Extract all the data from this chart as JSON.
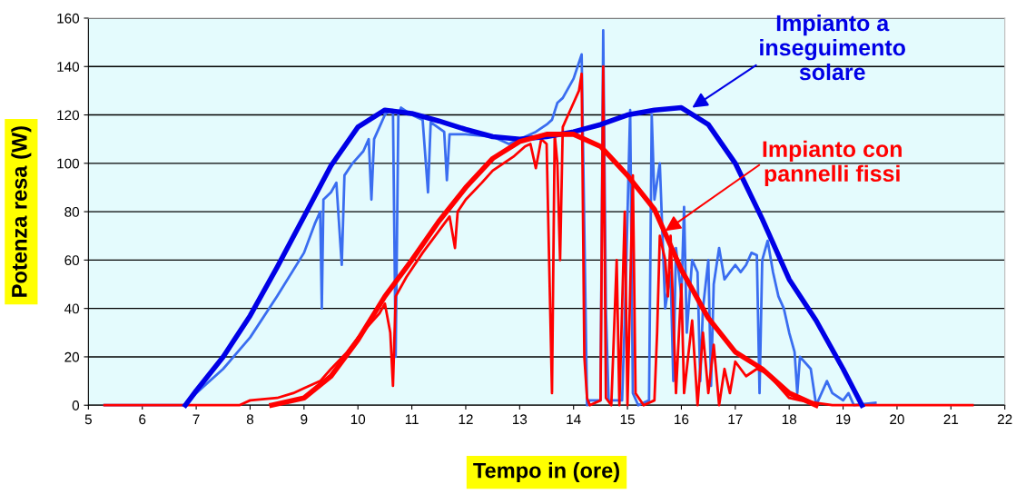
{
  "chart_data": {
    "type": "line",
    "xlabel": "Tempo in (ore)",
    "ylabel": "Potenza resa (W)",
    "xlim": [
      5,
      22
    ],
    "xticks": [
      5,
      6,
      7,
      8,
      9,
      10,
      11,
      12,
      13,
      14,
      15,
      16,
      17,
      18,
      19,
      20,
      21,
      22
    ],
    "ylim": [
      0,
      160
    ],
    "yticks": [
      0,
      20,
      40,
      60,
      80,
      100,
      120,
      140,
      160
    ],
    "grid": "y",
    "legend": false,
    "marker": "none",
    "line_style": "solid",
    "series": [
      {
        "color": "#3a6df0",
        "x": [
          5.3,
          6.8,
          7.0,
          7.5,
          8.0,
          8.5,
          9.0,
          9.2,
          9.3,
          9.33,
          9.36,
          9.5,
          9.6,
          9.7,
          9.75,
          9.9,
          10.1,
          10.2,
          10.25,
          10.3,
          10.4,
          10.5,
          10.6,
          10.65,
          10.7,
          10.75,
          10.8,
          11.0,
          11.2,
          11.3,
          11.35,
          11.6,
          11.65,
          11.7,
          12.0,
          12.5,
          12.8,
          13.0,
          13.3,
          13.5,
          13.6,
          13.7,
          13.8,
          14.0,
          14.15,
          14.25,
          14.3,
          14.5,
          14.55,
          14.6,
          14.65,
          14.9,
          14.95,
          15.05,
          15.1,
          15.2,
          15.4,
          15.45,
          15.5,
          15.6,
          15.65,
          15.7,
          15.8,
          15.85,
          15.9,
          16.0,
          16.05,
          16.1,
          16.2,
          16.3,
          16.35,
          16.4,
          16.5,
          16.55,
          16.6,
          16.7,
          16.8,
          16.9,
          17.0,
          17.1,
          17.2,
          17.3,
          17.4,
          17.45,
          17.5,
          17.6,
          17.7,
          17.8,
          17.9,
          18.0,
          18.1,
          18.15,
          18.2,
          18.4,
          18.5,
          18.7,
          18.8,
          19.0,
          19.1,
          19.2,
          19.6
        ],
        "values": [
          0,
          0,
          5,
          15,
          28,
          45,
          63,
          75,
          80,
          40,
          85,
          88,
          92,
          58,
          95,
          100,
          105,
          110,
          85,
          110,
          115,
          120,
          122,
          122,
          20,
          120,
          123,
          120,
          118,
          88,
          117,
          113,
          93,
          112,
          112,
          111,
          108,
          110,
          113,
          116,
          118,
          125,
          127,
          135,
          145,
          0,
          2,
          2,
          155,
          40,
          2,
          2,
          35,
          122,
          5,
          0,
          2,
          120,
          85,
          100,
          70,
          40,
          55,
          10,
          65,
          45,
          82,
          30,
          60,
          55,
          10,
          40,
          60,
          8,
          50,
          65,
          52,
          55,
          58,
          55,
          58,
          63,
          62,
          5,
          60,
          68,
          55,
          45,
          40,
          30,
          22,
          5,
          20,
          15,
          0,
          10,
          5,
          2,
          5,
          0,
          1
        ]
      },
      {
        "color": "#ff0000",
        "x": [
          5.3,
          7.8,
          8.0,
          8.5,
          8.8,
          9.0,
          9.3,
          9.5,
          9.8,
          10.0,
          10.2,
          10.4,
          10.5,
          10.6,
          10.65,
          10.7,
          10.9,
          11.2,
          11.5,
          11.7,
          11.8,
          11.85,
          12.0,
          12.3,
          12.5,
          12.7,
          12.9,
          13.0,
          13.1,
          13.2,
          13.3,
          13.4,
          13.5,
          13.6,
          13.65,
          13.7,
          13.75,
          13.8,
          13.9,
          14.0,
          14.1,
          14.15,
          14.2,
          14.25,
          14.3,
          14.5,
          14.55,
          14.6,
          14.7,
          14.8,
          14.85,
          14.95,
          15.0,
          15.1,
          15.15,
          15.3,
          15.5,
          15.55,
          15.6,
          15.7,
          15.75,
          15.8,
          15.9,
          16.0,
          16.05,
          16.2,
          16.3,
          16.4,
          16.5,
          16.6,
          16.7,
          16.8,
          16.9,
          17.0,
          17.2,
          17.4,
          17.6,
          17.8,
          18.0,
          18.2,
          18.5,
          18.8,
          21.4
        ],
        "values": [
          0,
          0,
          2,
          3,
          5,
          7,
          10,
          15,
          22,
          28,
          33,
          38,
          42,
          30,
          8,
          45,
          53,
          63,
          72,
          78,
          65,
          80,
          85,
          92,
          97,
          100,
          103,
          105,
          107,
          108,
          98,
          110,
          108,
          5,
          112,
          100,
          60,
          115,
          120,
          125,
          130,
          137,
          20,
          3,
          0,
          2,
          140,
          3,
          0,
          60,
          0,
          80,
          0,
          95,
          5,
          0,
          2,
          30,
          70,
          60,
          45,
          70,
          5,
          50,
          5,
          35,
          0,
          30,
          5,
          25,
          0,
          15,
          5,
          18,
          12,
          15,
          13,
          8,
          3,
          2,
          1,
          0,
          0
        ]
      },
      {
        "color": "#0000e6",
        "x": [
          6.8,
          7.0,
          7.5,
          8.0,
          8.5,
          9.0,
          9.5,
          10.0,
          10.5,
          11.0,
          11.5,
          12.0,
          12.5,
          13.0,
          13.5,
          14.0,
          14.5,
          15.0,
          15.5,
          16.0,
          16.5,
          17.0,
          17.5,
          18.0,
          18.5,
          19.0,
          19.35
        ],
        "values": [
          0,
          6,
          20,
          37,
          57,
          78,
          99,
          115,
          122,
          120.6,
          117.5,
          114,
          111,
          110,
          111,
          113,
          116,
          120,
          122,
          123,
          116,
          100,
          77,
          52,
          35,
          15,
          0
        ]
      },
      {
        "color": "#ff0000",
        "x": [
          8.4,
          9.0,
          9.5,
          10.0,
          10.5,
          11.0,
          11.5,
          12.0,
          12.5,
          13.0,
          13.5,
          14.0,
          14.5,
          15.0,
          15.5,
          16.0,
          16.5,
          17.0,
          17.5,
          18.0,
          18.5
        ],
        "values": [
          0,
          3,
          12,
          27,
          45,
          60,
          76,
          90,
          102,
          109,
          112,
          112,
          107,
          95,
          81,
          56,
          36,
          22,
          15,
          5,
          0
        ]
      }
    ],
    "annotations": [
      {
        "text": "Impianto a\ninseguimento\nsolare",
        "x": 16.2,
        "y": 123
      },
      {
        "text": "Impianto con\npannelli fissi",
        "x": 15.7,
        "y": 72
      }
    ]
  }
}
